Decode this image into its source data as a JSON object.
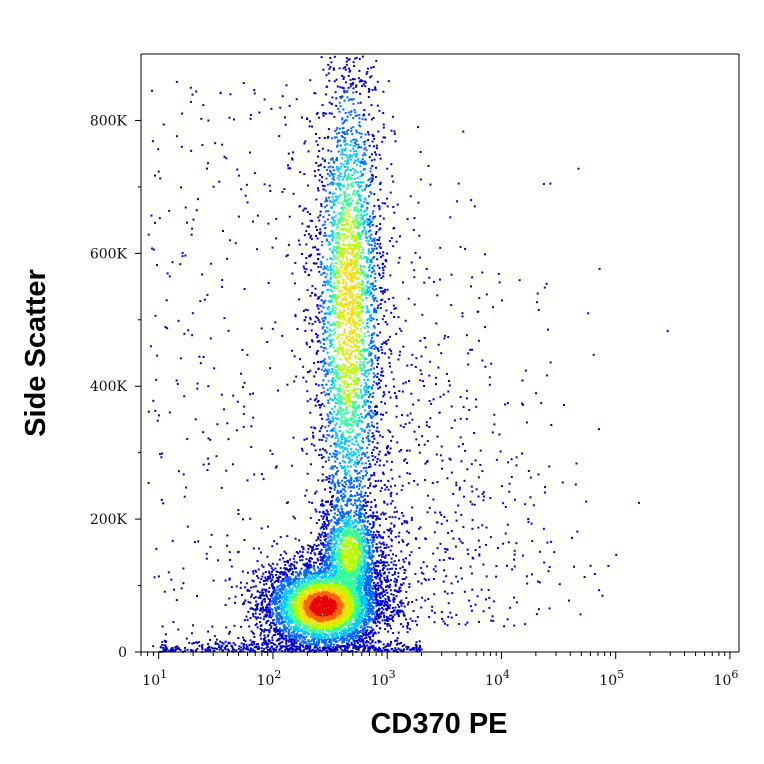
{
  "chart_data": {
    "type": "heatmap",
    "subtype": "flow-cytometry-density-dot-plot",
    "xlabel": "CD370 PE",
    "ylabel": "Side Scatter",
    "x_scale": "log",
    "xlim": [
      7,
      1200000
    ],
    "ylim": [
      0,
      900000
    ],
    "grid": false,
    "x_ticks": [
      {
        "value": 10,
        "base": "10",
        "exp": "1"
      },
      {
        "value": 100,
        "base": "10",
        "exp": "2"
      },
      {
        "value": 1000,
        "base": "10",
        "exp": "3"
      },
      {
        "value": 10000,
        "base": "10",
        "exp": "4"
      },
      {
        "value": 100000,
        "base": "10",
        "exp": "5"
      },
      {
        "value": 1000000,
        "base": "10",
        "exp": "6"
      }
    ],
    "y_ticks": [
      {
        "value": 0,
        "label": "0"
      },
      {
        "value": 200000,
        "label": "200K"
      },
      {
        "value": 400000,
        "label": "400K"
      },
      {
        "value": 600000,
        "label": "600K"
      },
      {
        "value": 800000,
        "label": "800K"
      }
    ],
    "colormap": [
      "#0000c8",
      "#0066ff",
      "#00c8ff",
      "#33ff99",
      "#b4ff00",
      "#ffdc00",
      "#ff6400",
      "#e60000"
    ],
    "populations": [
      {
        "name_visible": false,
        "x_center": 270,
        "y_center": 70000,
        "x_log_sd": 0.17,
        "y_sd": 22000,
        "peak_density": 1.0
      },
      {
        "name_visible": false,
        "x_center": 460,
        "y_center": 150000,
        "x_log_sd": 0.09,
        "y_sd": 28000,
        "peak_density": 0.42
      },
      {
        "name_visible": false,
        "x_center": 450,
        "y_center": 520000,
        "x_log_sd": 0.1,
        "y_sd": 130000,
        "peak_density": 0.55
      }
    ]
  }
}
